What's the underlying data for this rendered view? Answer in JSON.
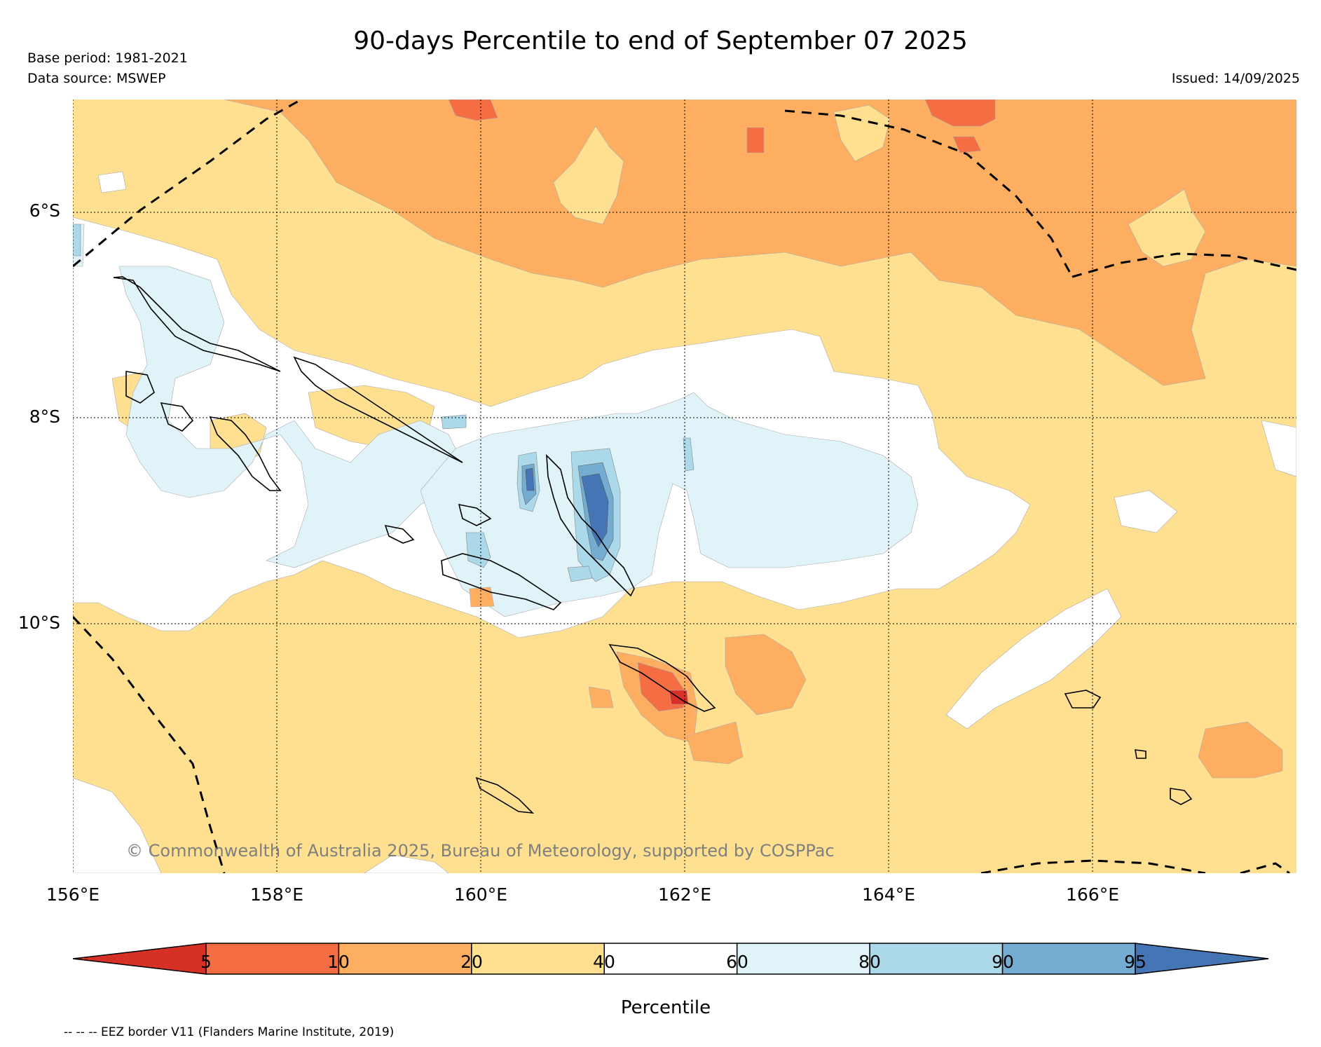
{
  "title": "90-days Percentile to end of September 07 2025",
  "base_period": "Base period: 1981-2021",
  "data_source": "Data source: MSWEP",
  "issued": "Issued: 14/09/2025",
  "copyright": "© Commonwealth of Australia 2025, Bureau of Meteorology, supported by COSPPac",
  "map": {
    "lon_range": [
      156,
      168
    ],
    "lat_range": [
      -4.8,
      -12.4
    ],
    "lat_ticks": [
      "6°S",
      "8°S",
      "10°S"
    ],
    "lon_ticks": [
      "156°E",
      "158°E",
      "160°E",
      "162°E",
      "164°E",
      "166°E"
    ],
    "gridlines": true,
    "region": "Solomon Islands"
  },
  "colorbar": {
    "label": "Percentile",
    "ticks": [
      "5",
      "10",
      "20",
      "40",
      "60",
      "80",
      "90",
      "95"
    ],
    "bins": [
      {
        "range": "<5",
        "color": "#d73027"
      },
      {
        "range": "5-10",
        "color": "#f46d43"
      },
      {
        "range": "10-20",
        "color": "#fdae61"
      },
      {
        "range": "20-40",
        "color": "#fee090"
      },
      {
        "range": "40-60",
        "color": "#ffffff"
      },
      {
        "range": "60-80",
        "color": "#e0f3f8"
      },
      {
        "range": "80-90",
        "color": "#abd9e9"
      },
      {
        "range": "90-95",
        "color": "#74add1"
      },
      {
        "range": ">95",
        "color": "#4575b4"
      }
    ]
  },
  "legend_note": "-- -- -- EEZ border V11 (Flanders Marine Institute, 2019)"
}
